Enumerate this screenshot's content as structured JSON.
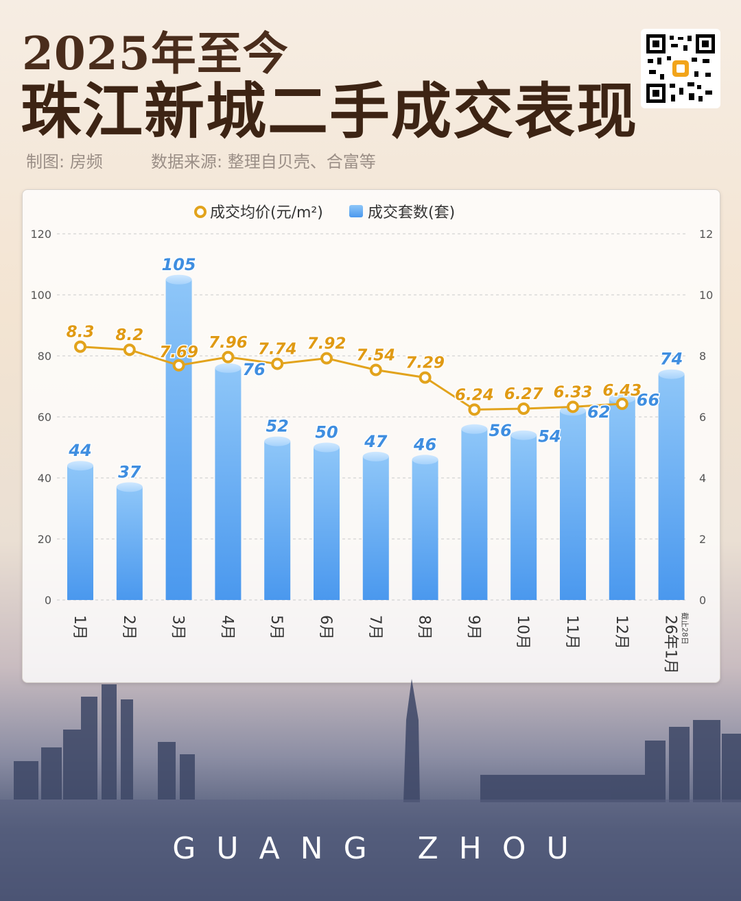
{
  "header": {
    "title_line1": "2025年至今",
    "title_line2": "珠江新城二手成交表现",
    "credit": "制图: 房频",
    "source": "数据来源: 整理自贝壳、合富等"
  },
  "footer": {
    "city": "GUANG ZHOU"
  },
  "colors": {
    "price_line": "#e2a31c",
    "bar_top": "#9fd0fa",
    "bar_bottom": "#4f9ff0",
    "count_label": "#3f8ee0",
    "price_label": "#e09a14"
  },
  "chart_data": {
    "type": "bar",
    "categories": [
      "1月",
      "2月",
      "3月",
      "4月",
      "5月",
      "6月",
      "7月",
      "8月",
      "9月",
      "10月",
      "11月",
      "12月",
      "26年1月"
    ],
    "category_notes": [
      "",
      "",
      "",
      "",
      "",
      "",
      "",
      "",
      "",
      "",
      "",
      "",
      "截止28日"
    ],
    "series": [
      {
        "name": "成交套数(套)",
        "type": "bar",
        "axis": "left",
        "values": [
          44,
          37,
          105,
          76,
          52,
          50,
          47,
          46,
          56,
          54,
          62,
          66,
          74
        ]
      },
      {
        "name": "成交均价(元/m²)",
        "type": "line",
        "axis": "right",
        "values": [
          8.3,
          8.2,
          7.69,
          7.96,
          7.74,
          7.92,
          7.54,
          7.29,
          6.24,
          6.27,
          6.33,
          6.43,
          null
        ]
      }
    ],
    "y_left": {
      "min": 0,
      "max": 120,
      "ticks": [
        0,
        20,
        40,
        60,
        80,
        100,
        120
      ]
    },
    "y_right": {
      "min": 0,
      "max": 12,
      "ticks": [
        0,
        2,
        4,
        6,
        8,
        10,
        12
      ]
    },
    "legend_position": "top-center",
    "grid": true
  }
}
